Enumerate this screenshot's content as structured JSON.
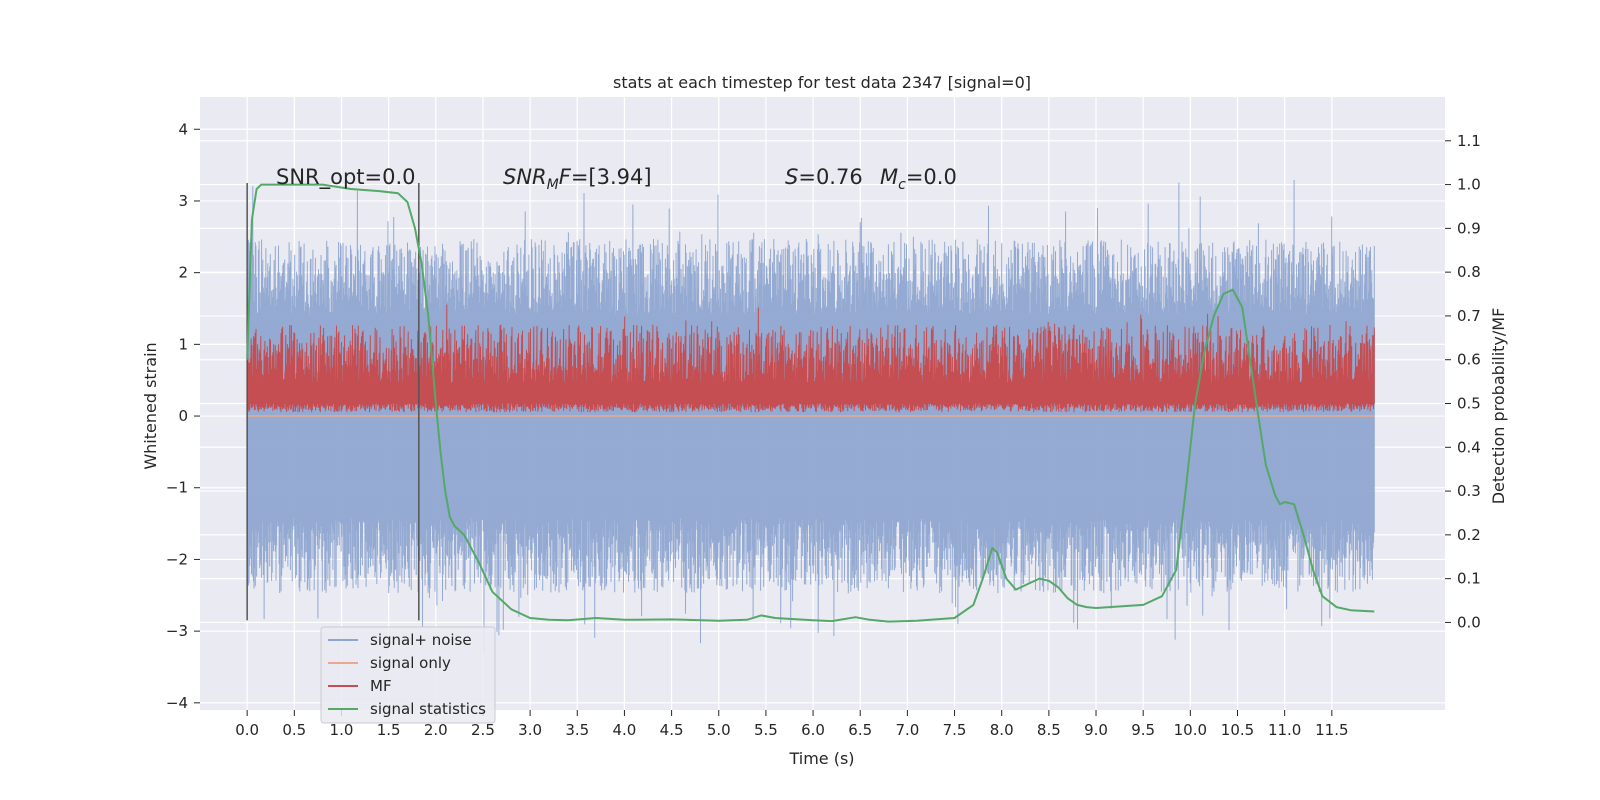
{
  "chart_data": {
    "type": "line",
    "title": "stats at each timestep for test data 2347 [signal=0]",
    "xlabel": "Time (s)",
    "ylabel_left": "Whitened strain",
    "ylabel_right": "Detection probability/MF",
    "xlim": [
      -0.5,
      12.7
    ],
    "ylim_left": [
      -4.1,
      4.45
    ],
    "ylim_right": [
      -0.2,
      1.2
    ],
    "x_ticks": [
      "0.0",
      "0.5",
      "1.0",
      "1.5",
      "2.0",
      "2.5",
      "3.0",
      "3.5",
      "4.0",
      "4.5",
      "5.0",
      "5.5",
      "6.0",
      "6.5",
      "7.0",
      "7.5",
      "8.0",
      "8.5",
      "9.0",
      "9.5",
      "10.0",
      "10.5",
      "11.0",
      "11.5"
    ],
    "y_ticks_left": [
      "4",
      "3",
      "2",
      "1",
      "0",
      "−1",
      "−2",
      "−3",
      "−4"
    ],
    "y_ticks_right": [
      "1.1",
      "1.0",
      "0.9",
      "0.8",
      "0.7",
      "0.6",
      "0.5",
      "0.4",
      "0.3",
      "0.2",
      "0.1",
      "0.0"
    ],
    "annotations": {
      "snr_opt": "SNR_opt=0.0",
      "snr_mf": "=[3.94]",
      "snr_mf_main": "SNR",
      "snr_mf_sub": "M",
      "snr_mf_tail": "F",
      "s_label": "S",
      "s_value": "=0.76",
      "mc_label": "M",
      "mc_sub": "c",
      "mc_value": "=0.0"
    },
    "vlines_x": [
      0.0,
      1.82
    ],
    "legend": {
      "position": "lower-left",
      "entries": [
        {
          "label": "signal+ noise",
          "color": "#8fa6d0"
        },
        {
          "label": "signal only",
          "color": "#e8a98c"
        },
        {
          "label": "MF",
          "color": "#c44e52"
        },
        {
          "label": "signal statistics",
          "color": "#55a868"
        }
      ]
    },
    "series": [
      {
        "name": "signal+ noise",
        "axis": "left",
        "color": "#8fa6d0",
        "envelope_typical": [
          -1.9,
          1.9
        ],
        "x_range": [
          0.0,
          11.95
        ]
      },
      {
        "name": "signal only",
        "axis": "left",
        "color": "#e8a98c",
        "values_constant": 0.0,
        "x_range": [
          0.0,
          11.95
        ]
      },
      {
        "name": "MF",
        "axis": "right",
        "color": "#c44e52",
        "envelope_typical": [
          0.5,
          0.62
        ],
        "x_range": [
          0.0,
          11.95
        ]
      },
      {
        "name": "signal statistics",
        "axis": "right",
        "color": "#55a868",
        "x": [
          0.0,
          0.05,
          0.1,
          0.15,
          0.25,
          0.5,
          0.8,
          1.1,
          1.4,
          1.6,
          1.7,
          1.78,
          1.85,
          1.92,
          2.0,
          2.05,
          2.1,
          2.15,
          2.2,
          2.3,
          2.45,
          2.6,
          2.8,
          3.0,
          3.2,
          3.4,
          3.7,
          4.0,
          4.5,
          5.0,
          5.3,
          5.45,
          5.6,
          6.0,
          6.2,
          6.45,
          6.6,
          6.8,
          7.1,
          7.5,
          7.7,
          7.8,
          7.9,
          7.95,
          8.05,
          8.15,
          8.3,
          8.4,
          8.5,
          8.6,
          8.7,
          8.8,
          8.9,
          9.0,
          9.2,
          9.5,
          9.7,
          9.85,
          9.95,
          10.05,
          10.15,
          10.25,
          10.35,
          10.45,
          10.55,
          10.62,
          10.7,
          10.8,
          10.9,
          10.95,
          11.0,
          11.1,
          11.2,
          11.3,
          11.4,
          11.55,
          11.7,
          11.95
        ],
        "values": [
          0.6,
          0.92,
          0.99,
          1.0,
          1.0,
          1.0,
          1.0,
          0.99,
          0.985,
          0.98,
          0.96,
          0.9,
          0.82,
          0.7,
          0.5,
          0.39,
          0.3,
          0.24,
          0.22,
          0.2,
          0.14,
          0.07,
          0.03,
          0.01,
          0.006,
          0.005,
          0.01,
          0.006,
          0.007,
          0.004,
          0.006,
          0.016,
          0.01,
          0.005,
          0.003,
          0.012,
          0.006,
          0.002,
          0.004,
          0.01,
          0.04,
          0.1,
          0.17,
          0.16,
          0.1,
          0.075,
          0.09,
          0.1,
          0.095,
          0.08,
          0.055,
          0.04,
          0.035,
          0.033,
          0.036,
          0.04,
          0.06,
          0.12,
          0.3,
          0.5,
          0.62,
          0.7,
          0.75,
          0.76,
          0.72,
          0.62,
          0.5,
          0.36,
          0.29,
          0.27,
          0.275,
          0.27,
          0.2,
          0.12,
          0.06,
          0.035,
          0.028,
          0.025
        ]
      }
    ]
  }
}
